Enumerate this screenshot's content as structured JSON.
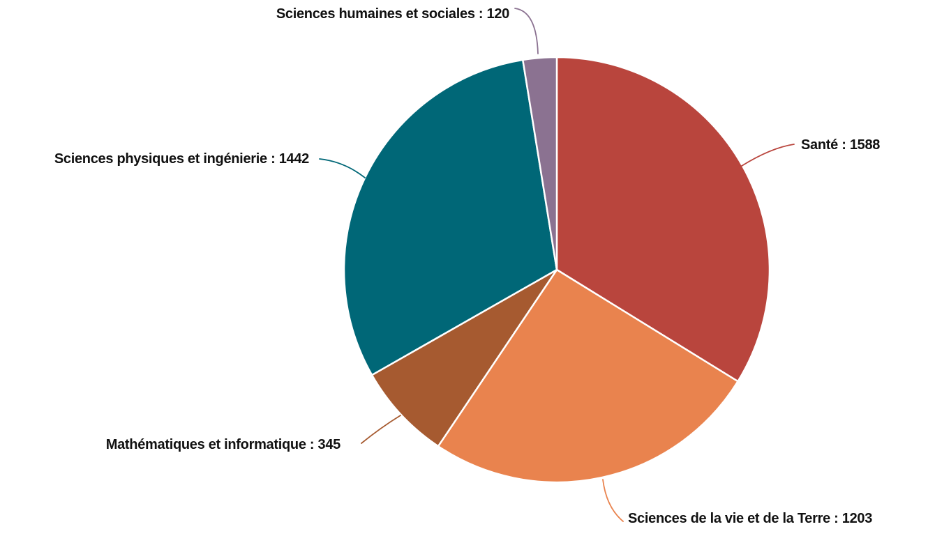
{
  "chart_data": {
    "type": "pie",
    "title": "",
    "total": 4698,
    "direction": "clockwise",
    "start_angle_deg": 0,
    "legend_position": "outside-callout-labels-with-leader-lines",
    "grid": false,
    "background_color": "#ffffff",
    "label_color": "#111111",
    "slice_border_color": "#ffffff",
    "slices": [
      {
        "name": "Santé",
        "value": 1588,
        "color": "#b9453d",
        "label_text": "Santé : 1588"
      },
      {
        "name": "Sciences de la vie et de la Terre",
        "value": 1203,
        "color": "#e9834e",
        "label_text": "Sciences de la vie et de la Terre : 1203"
      },
      {
        "name": "Mathématiques et informatique",
        "value": 345,
        "color": "#a65a30",
        "label_text": "Mathématiques et informatique : 345"
      },
      {
        "name": "Sciences physiques et ingénierie",
        "value": 1442,
        "color": "#006777",
        "label_text": "Sciences physiques et ingénierie : 1442"
      },
      {
        "name": "Sciences humaines et sociales",
        "value": 120,
        "color": "#8b7291",
        "label_text": "Sciences humaines et sociales : 120"
      }
    ]
  }
}
